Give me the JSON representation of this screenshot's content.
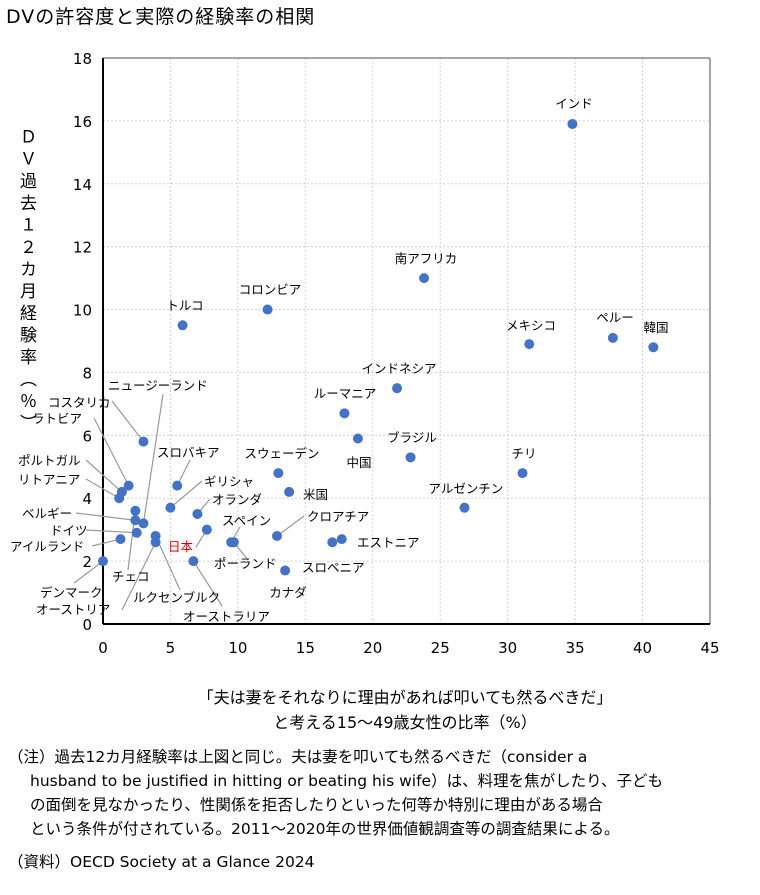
{
  "title": "DVの許容度と実際の経験率の相関",
  "chart_data": {
    "type": "scatter",
    "title": "DVの許容度と実際の経験率の相関",
    "ylabel": "ＤＶ過去１２カ月経験率（％）",
    "xlabel_lines": [
      "「夫は妻をそれなりに理由があれば叩いても然るべきだ」",
      "と考える15～49歳女性の比率（%）"
    ],
    "xlim": [
      0,
      45
    ],
    "ylim": [
      0,
      18
    ],
    "xticks": [
      0,
      5,
      10,
      15,
      20,
      25,
      30,
      35,
      40,
      45
    ],
    "yticks": [
      0,
      2,
      4,
      6,
      8,
      10,
      12,
      14,
      16,
      18
    ],
    "grid": true,
    "marker_color": "#4472c4",
    "highlight_color": "#e00000",
    "points": [
      {
        "label": "インド",
        "x": 34.8,
        "y": 15.9
      },
      {
        "label": "南アフリカ",
        "x": 23.8,
        "y": 11.0
      },
      {
        "label": "コロンビア",
        "x": 12.2,
        "y": 10.0
      },
      {
        "label": "トルコ",
        "x": 5.9,
        "y": 9.5
      },
      {
        "label": "メキシコ",
        "x": 31.6,
        "y": 8.9
      },
      {
        "label": "ペルー",
        "x": 37.8,
        "y": 9.1
      },
      {
        "label": "韓国",
        "x": 40.8,
        "y": 8.8
      },
      {
        "label": "インドネシア",
        "x": 21.8,
        "y": 7.5
      },
      {
        "label": "ルーマニア",
        "x": 17.9,
        "y": 6.7
      },
      {
        "label": "中国",
        "x": 18.9,
        "y": 5.9
      },
      {
        "label": "ブラジル",
        "x": 22.8,
        "y": 5.3
      },
      {
        "label": "チリ",
        "x": 31.1,
        "y": 4.8
      },
      {
        "label": "アルゼンチン",
        "x": 26.8,
        "y": 3.7
      },
      {
        "label": "スウェーデン",
        "x": 13.0,
        "y": 4.8
      },
      {
        "label": "米国",
        "x": 13.8,
        "y": 4.2
      },
      {
        "label": "クロアチア",
        "x": 12.9,
        "y": 2.8
      },
      {
        "label": "エストニア",
        "x": 17.7,
        "y": 2.7
      },
      {
        "label": "スロベニア",
        "x": 17.0,
        "y": 2.6
      },
      {
        "label": "カナダ",
        "x": 13.5,
        "y": 1.7
      },
      {
        "label": "スペイン",
        "x": 9.5,
        "y": 2.6
      },
      {
        "label": "ポーランド",
        "x": 9.7,
        "y": 2.6
      },
      {
        "label": "日本",
        "x": 7.7,
        "y": 3.0,
        "highlight": true
      },
      {
        "label": "オランダ",
        "x": 7.0,
        "y": 3.5
      },
      {
        "label": "ギリシャ",
        "x": 5.0,
        "y": 3.7
      },
      {
        "label": "スロバキア",
        "x": 5.5,
        "y": 4.4
      },
      {
        "label": "オーストラリア",
        "x": 6.7,
        "y": 2.0
      },
      {
        "label": "ルクセンブルク",
        "x": 3.9,
        "y": 2.8
      },
      {
        "label": "オーストリア",
        "x": 3.9,
        "y": 2.6
      },
      {
        "label": "コスタリカ",
        "x": 3.0,
        "y": 5.8
      },
      {
        "label": "ラトビア",
        "x": 1.9,
        "y": 4.4
      },
      {
        "label": "ポルトガル",
        "x": 1.4,
        "y": 4.2
      },
      {
        "label": "リトアニア",
        "x": 1.2,
        "y": 4.0
      },
      {
        "label": "ニュージーランド",
        "x": 3.0,
        "y": 3.2
      },
      {
        "label": "ベルギー",
        "x": 2.4,
        "y": 3.3
      },
      {
        "label": "ドイツ",
        "x": 2.5,
        "y": 2.9
      },
      {
        "label": "アイルランド",
        "x": 1.3,
        "y": 2.7
      },
      {
        "label": "デンマーク",
        "x": 0.0,
        "y": 2.0
      },
      {
        "label": "チェコ",
        "x": 2.4,
        "y": 3.6
      }
    ]
  },
  "xlabel_line1": "「夫は妻をそれなりに理由があれば叩いても然るべきだ」",
  "xlabel_line2": "と考える15～49歳女性の比率（%）",
  "note": {
    "line1": "（注）過去12カ月経験率は上図と同じ。夫は妻を叩いても然るべきだ（consider a",
    "line2": "husband to be justified in hitting or beating his wife）は、料理を焦がしたり、子ども",
    "line3": "の面倒を見なかったり、性関係を拒否したりといった何等か特別に理由がある場合",
    "line4": "という条件が付されている。2011～2020年の世界価値観調査等の調査結果による。"
  },
  "source": "（資料）OECD Society at a Glance 2024"
}
